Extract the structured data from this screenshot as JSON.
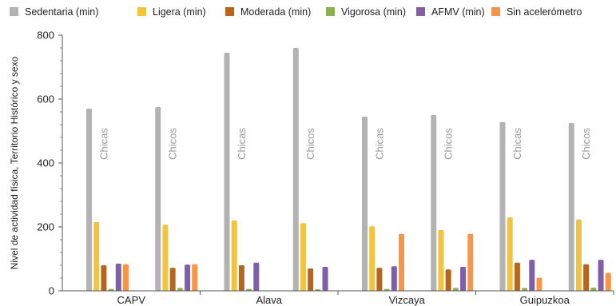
{
  "chart_data": {
    "type": "bar",
    "title": "",
    "xlabel": "",
    "ylabel": "Nivel de actividad física, Territorio Histórico y sexo",
    "ylim": [
      0,
      800
    ],
    "yticks": [
      0,
      200,
      400,
      600,
      800
    ],
    "grid": false,
    "legend_position": "top",
    "groups": [
      "CAPV",
      "Alava",
      "Vizcaya",
      "Guipuzkoa"
    ],
    "sub_labels": [
      "Chicas",
      "Chicos"
    ],
    "series": [
      {
        "name": "Sedentaria (min)",
        "color": "#b3b3b3",
        "values": [
          570,
          575,
          745,
          760,
          545,
          550,
          528,
          525
        ]
      },
      {
        "name": "Ligera (min)",
        "color": "#f2c43d",
        "values": [
          215,
          207,
          220,
          212,
          202,
          190,
          230,
          223
        ]
      },
      {
        "name": "Moderada (min)",
        "color": "#b5651d",
        "values": [
          80,
          72,
          80,
          70,
          72,
          67,
          88,
          83
        ]
      },
      {
        "name": "Vigorosa (min)",
        "color": "#8db04f",
        "values": [
          6,
          9,
          6,
          5,
          6,
          9,
          9,
          10
        ]
      },
      {
        "name": "AFMV (min)",
        "color": "#7f5fa8",
        "values": [
          85,
          82,
          88,
          75,
          77,
          75,
          97,
          97
        ]
      },
      {
        "name": "Sin acelerómetro",
        "color": "#f79646",
        "values": [
          83,
          83,
          0,
          0,
          178,
          178,
          41,
          56
        ]
      }
    ]
  }
}
